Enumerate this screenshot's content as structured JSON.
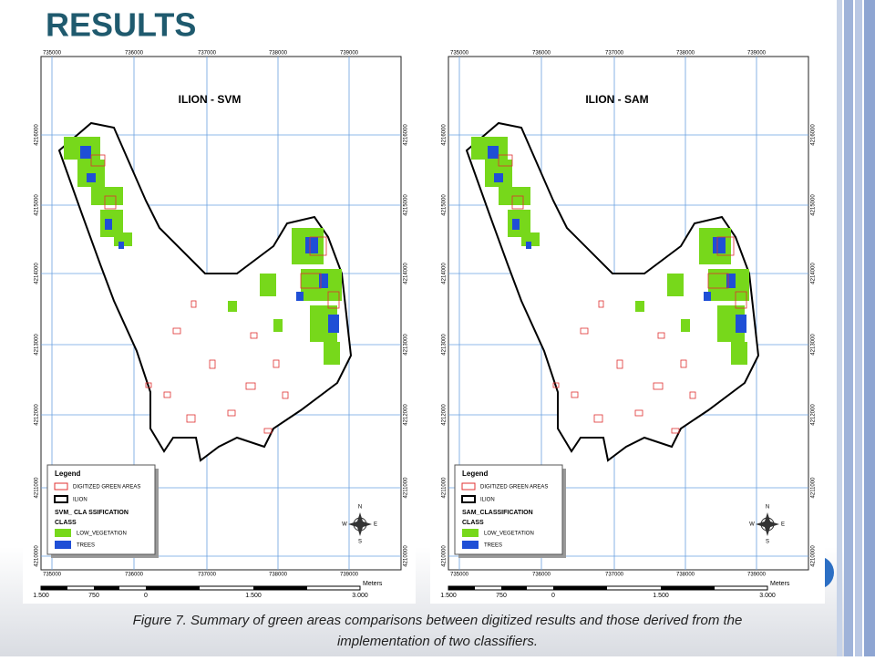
{
  "header": {
    "title": "RESULTS"
  },
  "maps": [
    {
      "title": "ILION - SVM",
      "x_labels": [
        "735000",
        "736000",
        "737000",
        "738000",
        "739000"
      ],
      "y_labels": [
        "4216000",
        "4215000",
        "4214000",
        "4213000",
        "4212000",
        "4211000",
        "4210000"
      ],
      "legend": {
        "title": "Legend",
        "items": [
          "DIGITIZED GREEN AREAS",
          "ILION"
        ],
        "class_title": "SVM_ CLA SSIFICATION",
        "class_label": "CLASS",
        "classes": [
          "LOW_VEGETATION",
          "TREES"
        ]
      },
      "scale_labels": [
        "1.500",
        "750",
        "0",
        "1.500",
        "3.000"
      ],
      "scale_unit": "Meters",
      "compass": [
        "N",
        "E",
        "S",
        "W"
      ]
    },
    {
      "title": "ILION - SAM",
      "x_labels": [
        "735000",
        "736000",
        "737000",
        "738000",
        "739000"
      ],
      "y_labels": [
        "4216000",
        "4215000",
        "4214000",
        "4213000",
        "4212000",
        "4211000",
        "4210000"
      ],
      "legend": {
        "title": "Legend",
        "items": [
          "DIGITIZED GREEN AREAS",
          "ILION"
        ],
        "class_title": "SAM_CLASSIFICATION",
        "class_label": "CLASS",
        "classes": [
          "LOW_VEGETATION",
          "TREES"
        ]
      },
      "scale_labels": [
        "1.500",
        "750",
        "0",
        "1.500",
        "3.000"
      ],
      "scale_unit": "Meters",
      "compass": [
        "N",
        "E",
        "S",
        "W"
      ]
    }
  ],
  "caption": [
    "Figure 7. Summary of green areas comparisons between digitized results and those derived from the",
    "implementation of two classifiers."
  ]
}
